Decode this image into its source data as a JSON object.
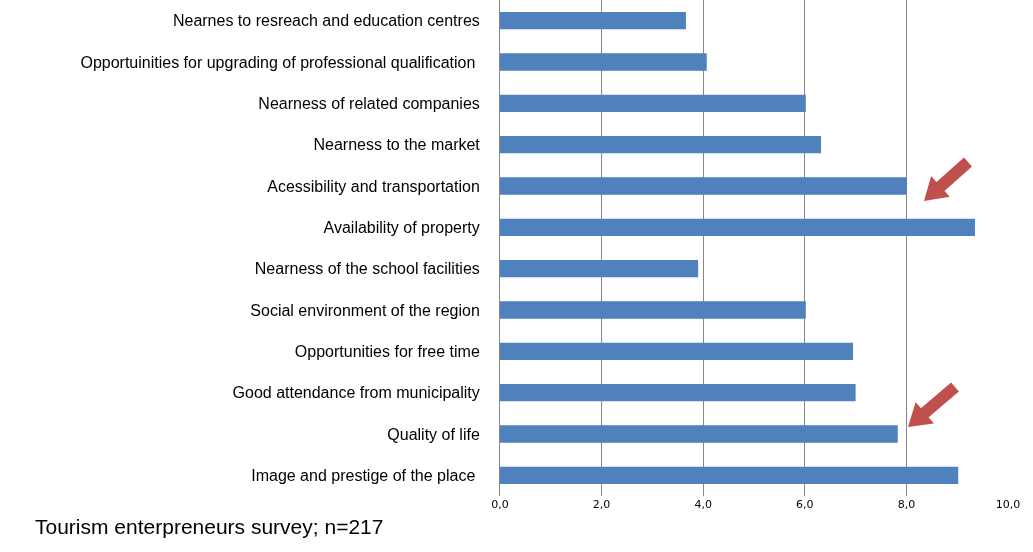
{
  "chart_data": {
    "type": "bar",
    "orientation": "horizontal",
    "categories": [
      "Nearnes to resreach and education centres",
      "Opportuinities for upgrading of professional qualification ",
      "Nearness of related companies",
      "Nearness to the market",
      "Acessibility and transportation",
      "Availability of property",
      "Nearness of the school facilities",
      "Social environment of the region",
      "Opportunities for free time",
      "Good attendance from municipality",
      "Quality of life",
      "Image and prestige of the place "
    ],
    "values": [
      3.66,
      4.07,
      6.02,
      6.32,
      8.01,
      9.35,
      3.9,
      6.02,
      6.95,
      7.0,
      7.83,
      9.02
    ],
    "color": "#4f81bd",
    "xlim": [
      0,
      10
    ],
    "xticks": [
      {
        "value": 0,
        "label": "0,0"
      },
      {
        "value": 2,
        "label": "2,0"
      },
      {
        "value": 4,
        "label": "4,0"
      },
      {
        "value": 6,
        "label": "6,0"
      },
      {
        "value": 8,
        "label": "8,0"
      },
      {
        "value": 10,
        "label": "10,0"
      }
    ],
    "grid": "x",
    "annotations": [
      "Tourism enterpreneurs survey; n=217"
    ]
  }
}
